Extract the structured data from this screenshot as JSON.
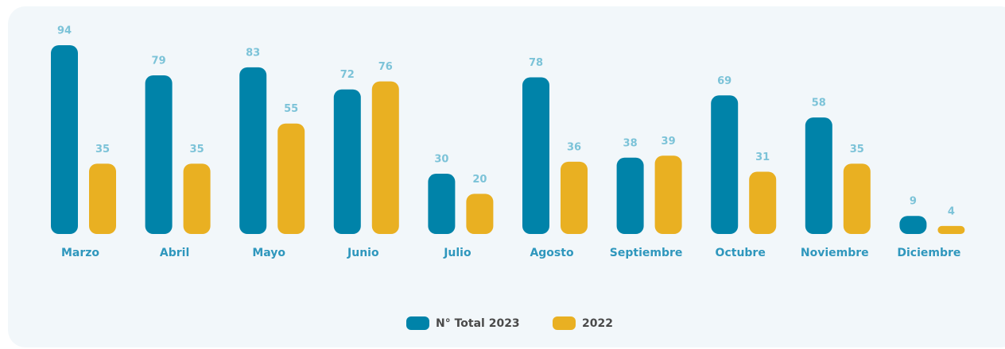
{
  "chart_data": {
    "type": "bar",
    "categories": [
      "Marzo",
      "Abril",
      "Mayo",
      "Junio",
      "Julio",
      "Agosto",
      "Septiembre",
      "Octubre",
      "Noviembre",
      "Diciembre"
    ],
    "series": [
      {
        "name": "N° Total 2023",
        "color": "#0083a9",
        "values": [
          94,
          79,
          83,
          72,
          30,
          78,
          38,
          69,
          58,
          9
        ]
      },
      {
        "name": "2022",
        "color": "#e9b022",
        "values": [
          35,
          35,
          55,
          76,
          20,
          36,
          39,
          31,
          35,
          4
        ]
      }
    ],
    "legend": "bottom"
  }
}
